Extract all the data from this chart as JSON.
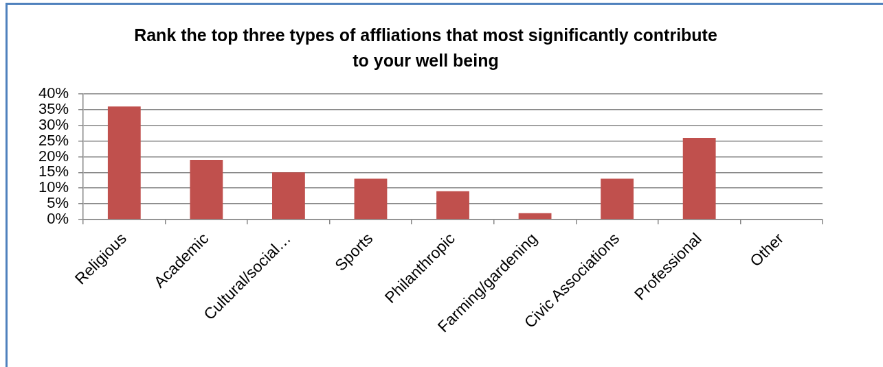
{
  "chart_data": {
    "type": "bar",
    "title": "Rank the top three types of affliations that most significantly contribute to your well being",
    "categories": [
      "Religious",
      "Academic",
      "Cultural/social…",
      "Sports",
      "Philanthropic",
      "Farming/gardening",
      "Civic Associations",
      "Professional",
      "Other"
    ],
    "values": [
      36,
      19,
      15,
      13,
      9,
      2,
      13,
      26,
      0
    ],
    "color": "#c0504d",
    "ylim": [
      0,
      40
    ],
    "yticks": [
      {
        "value": 0,
        "label": "0%"
      },
      {
        "value": 5,
        "label": "5%"
      },
      {
        "value": 10,
        "label": "10%"
      },
      {
        "value": 15,
        "label": "15%"
      },
      {
        "value": 20,
        "label": "20%"
      },
      {
        "value": 25,
        "label": "25%"
      },
      {
        "value": 30,
        "label": "30%"
      },
      {
        "value": 35,
        "label": "35%"
      },
      {
        "value": 40,
        "label": "40%"
      }
    ],
    "grid": "y"
  }
}
